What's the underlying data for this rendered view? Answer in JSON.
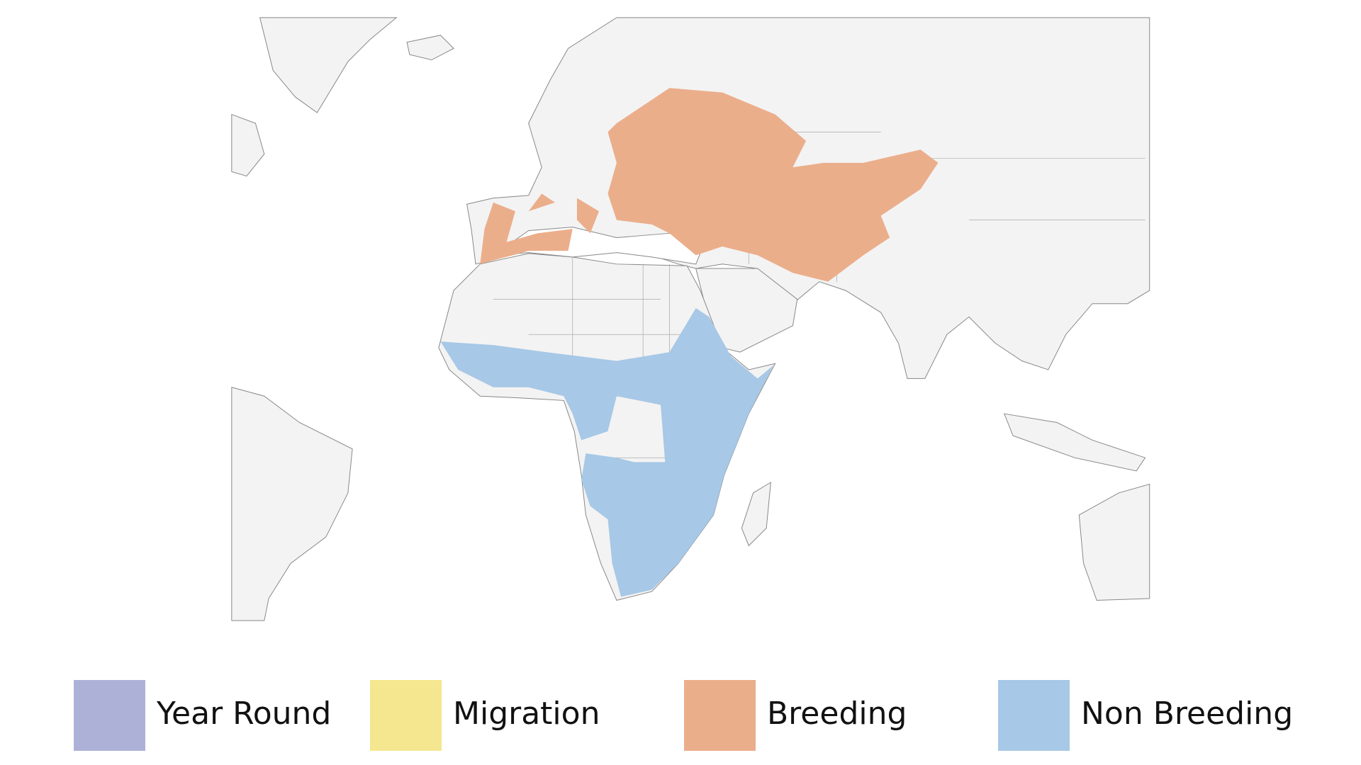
{
  "map": {
    "legend": [
      {
        "label": "Year Round",
        "color": "#aeb1d7"
      },
      {
        "label": "Migration",
        "color": "#f4e78f"
      },
      {
        "label": "Breeding",
        "color": "#ebae8b"
      },
      {
        "label": "Non Breeding",
        "color": "#a7c8e6"
      }
    ]
  }
}
